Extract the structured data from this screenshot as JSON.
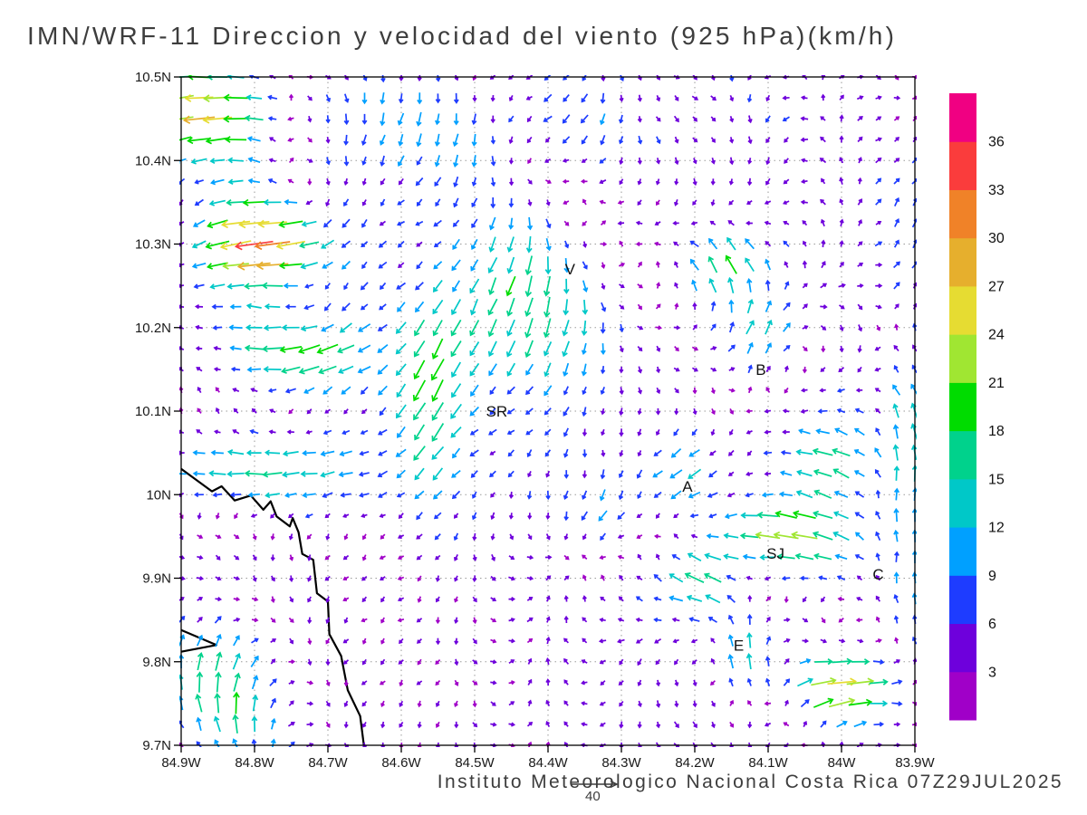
{
  "chart_data": {
    "type": "vector_field",
    "title": "IMN/WRF-11 Direccion y velocidad del viento (925 hPa)(km/h)",
    "footer": "Instituto Meteorologico Nacional Costa Rica 07Z29JUL2025",
    "units": "km/h",
    "level": "925 hPa",
    "model": "IMN/WRF-11",
    "lon_w_range": [
      84.9,
      83.9
    ],
    "lat_range": [
      9.7,
      10.5
    ],
    "grid_deg": 0.1,
    "lon_ticks": [
      {
        "label": "84.9W",
        "value": 84.9
      },
      {
        "label": "84.8W",
        "value": 84.8
      },
      {
        "label": "84.7W",
        "value": 84.7
      },
      {
        "label": "84.6W",
        "value": 84.6
      },
      {
        "label": "84.5W",
        "value": 84.5
      },
      {
        "label": "84.4W",
        "value": 84.4
      },
      {
        "label": "84.3W",
        "value": 84.3
      },
      {
        "label": "84.2W",
        "value": 84.2
      },
      {
        "label": "84.1W",
        "value": 84.1
      },
      {
        "label": "84W",
        "value": 84.0
      },
      {
        "label": "83.9W",
        "value": 83.9
      }
    ],
    "lat_ticks": [
      {
        "label": "10.5N",
        "value": 10.5
      },
      {
        "label": "10.4N",
        "value": 10.4
      },
      {
        "label": "10.3N",
        "value": 10.3
      },
      {
        "label": "10.2N",
        "value": 10.2
      },
      {
        "label": "10.1N",
        "value": 10.1
      },
      {
        "label": "10N",
        "value": 10.0
      },
      {
        "label": "9.9N",
        "value": 9.9
      },
      {
        "label": "9.8N",
        "value": 9.8
      },
      {
        "label": "9.7N",
        "value": 9.7
      }
    ],
    "colorbar": {
      "levels": [
        3,
        6,
        9,
        12,
        15,
        18,
        21,
        24,
        27,
        30,
        33,
        36
      ],
      "colors": [
        "#a000c8",
        "#6e00dc",
        "#1e3cff",
        "#00a0ff",
        "#00c8c8",
        "#00d28c",
        "#00dc00",
        "#a0e632",
        "#e6dc32",
        "#e6af2d",
        "#f08228",
        "#fa3c3c",
        "#f00082"
      ]
    },
    "reference_vector": {
      "value": 40,
      "label": "40"
    },
    "stations": [
      {
        "label": "V",
        "lon_w": 84.37,
        "lat": 10.27
      },
      {
        "label": "B",
        "lon_w": 84.11,
        "lat": 10.15
      },
      {
        "label": "SR",
        "lon_w": 84.47,
        "lat": 10.1
      },
      {
        "label": "A",
        "lon_w": 84.21,
        "lat": 10.01
      },
      {
        "label": "SJ",
        "lon_w": 84.09,
        "lat": 9.93
      },
      {
        "label": "C",
        "lon_w": 83.95,
        "lat": 9.905
      },
      {
        "label": "E",
        "lon_w": 84.14,
        "lat": 9.82
      }
    ],
    "vector_grid": {
      "nx": 41,
      "ny": 33
    },
    "base_flow": {
      "speed": 4.2,
      "jitter": 2.4
    },
    "flow_features": [
      {
        "name": "nw-strong-easterly-jet",
        "lon_w": 84.78,
        "lat": 10.3,
        "rx": 0.085,
        "ry": 0.06,
        "u": -31,
        "v": -7
      },
      {
        "name": "west-yellow-band",
        "lon_w": 84.74,
        "lat": 10.17,
        "rx": 0.09,
        "ry": 0.05,
        "u": -23,
        "v": -4
      },
      {
        "name": "topleft-easterly",
        "lon_w": 84.87,
        "lat": 10.46,
        "rx": 0.09,
        "ry": 0.06,
        "u": -22,
        "v": -1
      },
      {
        "name": "center-northerly",
        "lon_w": 84.45,
        "lat": 10.22,
        "rx": 0.12,
        "ry": 0.11,
        "u": -2,
        "v": -16
      },
      {
        "name": "south-streak",
        "lon_w": 84.56,
        "lat": 10.12,
        "rx": 0.05,
        "ry": 0.11,
        "u": -5,
        "v": -16
      },
      {
        "name": "midleft-easterly",
        "lon_w": 84.8,
        "lat": 10.03,
        "rx": 0.15,
        "ry": 0.05,
        "u": -19,
        "v": 1
      },
      {
        "name": "sanjose-easterly",
        "lon_w": 84.08,
        "lat": 9.95,
        "rx": 0.1,
        "ry": 0.045,
        "u": -20,
        "v": 5
      },
      {
        "name": "alajuela-west-band",
        "lon_w": 84.19,
        "lat": 9.9,
        "rx": 0.05,
        "ry": 0.04,
        "u": -16,
        "v": 2
      },
      {
        "name": "alajuela-westward",
        "lon_w": 84.22,
        "lat": 10.02,
        "rx": 0.06,
        "ry": 0.05,
        "u": -13,
        "v": -4
      },
      {
        "name": "bottomleft-southerly",
        "lon_w": 84.85,
        "lat": 9.76,
        "rx": 0.09,
        "ry": 0.08,
        "u": 1,
        "v": 14
      },
      {
        "name": "bottomright-westerly-jet",
        "lon_w": 83.99,
        "lat": 9.77,
        "rx": 0.07,
        "ry": 0.045,
        "u": 23,
        "v": 4
      },
      {
        "name": "east-edge-northward",
        "lon_w": 83.91,
        "lat": 10.15,
        "rx": 0.03,
        "ry": 0.3,
        "u": 0,
        "v": 11
      },
      {
        "name": "b-northward",
        "lon_w": 84.11,
        "lat": 10.18,
        "rx": 0.05,
        "ry": 0.06,
        "u": 2,
        "v": 12
      },
      {
        "name": "northcenter-upslope",
        "lon_w": 84.16,
        "lat": 10.28,
        "rx": 0.05,
        "ry": 0.05,
        "u": -5,
        "v": 13
      },
      {
        "name": "e-northward",
        "lon_w": 84.14,
        "lat": 9.8,
        "rx": 0.04,
        "ry": 0.05,
        "u": 2,
        "v": 12
      },
      {
        "name": "rightcenter-westward",
        "lon_w": 84.02,
        "lat": 10.04,
        "rx": 0.06,
        "ry": 0.05,
        "u": -14,
        "v": 3
      },
      {
        "name": "center-sw-flow",
        "lon_w": 84.33,
        "lat": 9.97,
        "rx": 0.06,
        "ry": 0.05,
        "u": -10,
        "v": -8
      },
      {
        "name": "topcenter-northerly",
        "lon_w": 84.5,
        "lat": 10.45,
        "rx": 0.25,
        "ry": 0.07,
        "u": -4,
        "v": -7
      }
    ],
    "coastline_lonlat": [
      [
        [
          84.9,
          10.031
        ],
        [
          84.858,
          10.004
        ],
        [
          84.845,
          10.01
        ],
        [
          84.827,
          9.993
        ],
        [
          84.805,
          9.999
        ],
        [
          84.788,
          9.982
        ],
        [
          84.778,
          9.992
        ],
        [
          84.77,
          9.974
        ],
        [
          84.752,
          9.962
        ],
        [
          84.748,
          9.972
        ],
        [
          84.74,
          9.955
        ],
        [
          84.735,
          9.929
        ],
        [
          84.72,
          9.922
        ],
        [
          84.715,
          9.882
        ],
        [
          84.7,
          9.872
        ],
        [
          84.698,
          9.833
        ],
        [
          84.682,
          9.807
        ],
        [
          84.673,
          9.766
        ],
        [
          84.656,
          9.735
        ],
        [
          84.651,
          9.7
        ]
      ],
      [
        [
          84.9,
          9.838
        ],
        [
          84.852,
          9.82
        ],
        [
          84.9,
          9.812
        ]
      ]
    ]
  }
}
